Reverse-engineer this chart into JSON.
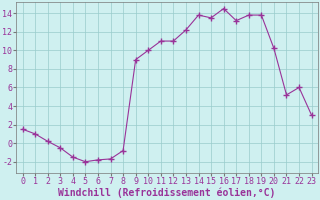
{
  "x": [
    0,
    1,
    2,
    3,
    4,
    5,
    6,
    7,
    8,
    9,
    10,
    11,
    12,
    13,
    14,
    15,
    16,
    17,
    18,
    19,
    20,
    21,
    22,
    23
  ],
  "y": [
    1.5,
    1.0,
    0.2,
    -0.5,
    -1.5,
    -2.0,
    -1.8,
    -1.7,
    -0.8,
    9.0,
    10.0,
    11.0,
    11.0,
    12.2,
    13.8,
    13.5,
    14.5,
    13.2,
    13.8,
    13.8,
    10.2,
    5.2,
    6.0,
    3.0
  ],
  "line_color": "#993399",
  "marker": "+",
  "marker_size": 4,
  "marker_lw": 1.0,
  "bg_color": "#cff0f0",
  "grid_color": "#99cccc",
  "xlabel": "Windchill (Refroidissement éolien,°C)",
  "xlabel_fontsize": 7,
  "xlim": [
    -0.5,
    23.5
  ],
  "ylim": [
    -3.2,
    15.2
  ],
  "yticks": [
    -2,
    0,
    2,
    4,
    6,
    8,
    10,
    12,
    14
  ],
  "xticks": [
    0,
    1,
    2,
    3,
    4,
    5,
    6,
    7,
    8,
    9,
    10,
    11,
    12,
    13,
    14,
    15,
    16,
    17,
    18,
    19,
    20,
    21,
    22,
    23
  ],
  "tick_fontsize": 6,
  "axis_color": "#993399",
  "spine_color": "#777777"
}
